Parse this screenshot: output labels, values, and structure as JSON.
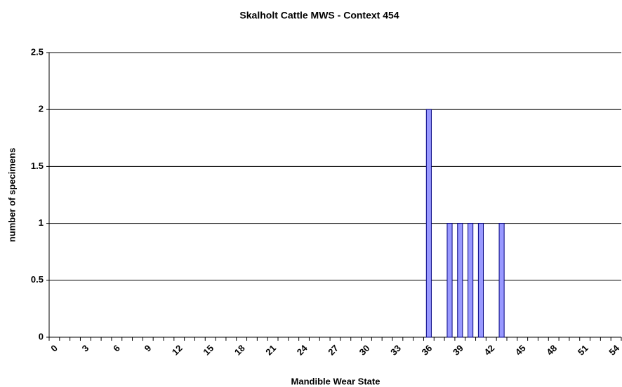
{
  "chart_data": {
    "type": "bar",
    "title": "Skalholt Cattle MWS - Context 454",
    "x_label": "Mandible Wear State",
    "y_label": "number of specimens",
    "categories": [
      0,
      null,
      null,
      3,
      null,
      null,
      6,
      null,
      null,
      9,
      null,
      null,
      12,
      null,
      null,
      15,
      null,
      null,
      18,
      null,
      null,
      21,
      null,
      null,
      24,
      null,
      null,
      27,
      null,
      null,
      30,
      null,
      null,
      33,
      null,
      null,
      36,
      null,
      null,
      39,
      null,
      null,
      42,
      null,
      null,
      45,
      null,
      null,
      48,
      null,
      null,
      51,
      null,
      null,
      54
    ],
    "values": [
      0,
      0,
      0,
      0,
      0,
      0,
      0,
      0,
      0,
      0,
      0,
      0,
      0,
      0,
      0,
      0,
      0,
      0,
      0,
      0,
      0,
      0,
      0,
      0,
      0,
      0,
      0,
      0,
      0,
      0,
      0,
      0,
      0,
      0,
      0,
      0,
      2,
      0,
      1,
      1,
      1,
      1,
      0,
      1,
      0,
      0,
      0,
      0,
      0,
      0,
      0,
      0,
      0,
      0,
      0
    ],
    "color": "#9999ff",
    "ylim": [
      0,
      2.5
    ],
    "yticks": [
      0,
      0.5,
      1,
      1.5,
      2,
      2.5
    ],
    "grid": true
  }
}
